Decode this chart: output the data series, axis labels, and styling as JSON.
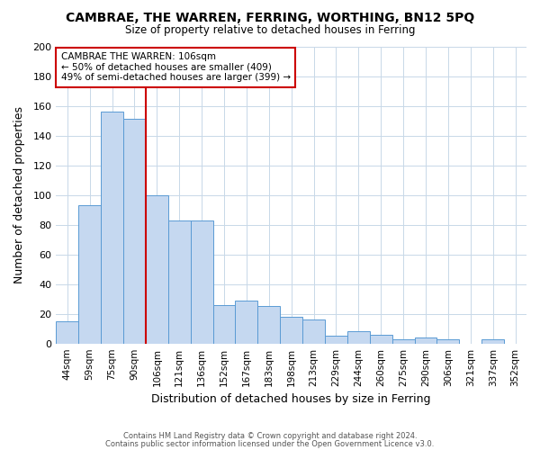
{
  "title": "CAMBRAE, THE WARREN, FERRING, WORTHING, BN12 5PQ",
  "subtitle": "Size of property relative to detached houses in Ferring",
  "xlabel": "Distribution of detached houses by size in Ferring",
  "ylabel": "Number of detached properties",
  "categories": [
    "44sqm",
    "59sqm",
    "75sqm",
    "90sqm",
    "106sqm",
    "121sqm",
    "136sqm",
    "152sqm",
    "167sqm",
    "183sqm",
    "198sqm",
    "213sqm",
    "229sqm",
    "244sqm",
    "260sqm",
    "275sqm",
    "290sqm",
    "306sqm",
    "321sqm",
    "337sqm",
    "352sqm"
  ],
  "values": [
    15,
    93,
    156,
    151,
    100,
    83,
    83,
    26,
    29,
    25,
    18,
    16,
    5,
    8,
    6,
    3,
    4,
    3,
    0,
    3,
    0
  ],
  "bar_color": "#c5d8f0",
  "bar_edge_color": "#5a9bd4",
  "highlight_index": 4,
  "highlight_line_color": "#cc0000",
  "ylim": [
    0,
    200
  ],
  "yticks": [
    0,
    20,
    40,
    60,
    80,
    100,
    120,
    140,
    160,
    180,
    200
  ],
  "annotation_title": "CAMBRAE THE WARREN: 106sqm",
  "annotation_line1": "← 50% of detached houses are smaller (409)",
  "annotation_line2": "49% of semi-detached houses are larger (399) →",
  "annotation_box_edge": "#cc0000",
  "footer_line1": "Contains HM Land Registry data © Crown copyright and database right 2024.",
  "footer_line2": "Contains public sector information licensed under the Open Government Licence v3.0.",
  "background_color": "#ffffff",
  "grid_color": "#c8d8e8"
}
